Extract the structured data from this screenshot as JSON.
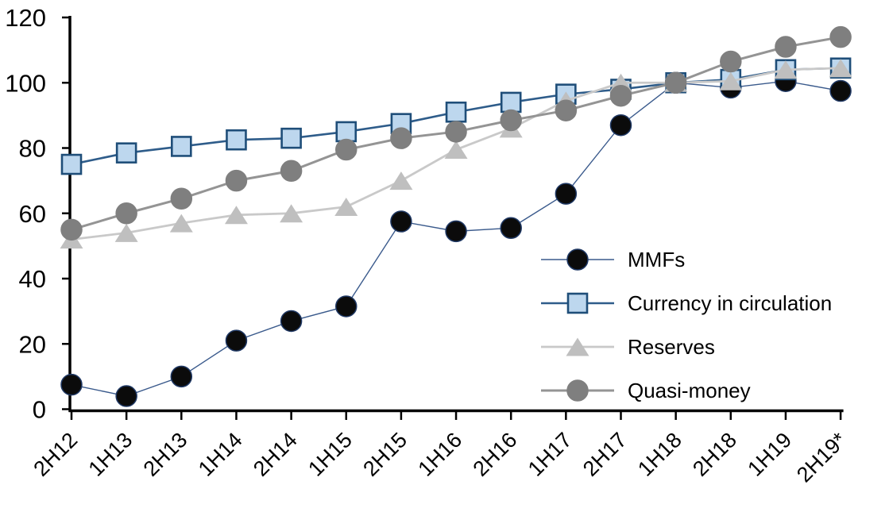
{
  "chart_data": {
    "type": "line",
    "title": "",
    "categories": [
      "2H12",
      "1H13",
      "2H13",
      "1H14",
      "2H14",
      "1H15",
      "2H15",
      "1H16",
      "2H16",
      "1H17",
      "2H17",
      "1H18",
      "2H18",
      "1H19",
      "2H19*"
    ],
    "series": [
      {
        "name": "MMFs",
        "marker": "circle",
        "marker_fill": "#0b0b0b",
        "marker_stroke": "#1f3864",
        "line_color": "#3a5a8c",
        "line_width": 1.4,
        "values": [
          7.5,
          4,
          10,
          21,
          27,
          31.5,
          57.5,
          54.5,
          55.5,
          66,
          87,
          100,
          98.5,
          100.5,
          97.5
        ]
      },
      {
        "name": "Currency in circulation",
        "marker": "square",
        "marker_fill": "#bdd7ee",
        "marker_stroke": "#1f4e79",
        "line_color": "#2e5c8a",
        "line_width": 2.6,
        "values": [
          75,
          78.5,
          80.5,
          82.5,
          83,
          85,
          87.5,
          91,
          94,
          96.5,
          98,
          100,
          101,
          104,
          104.5
        ]
      },
      {
        "name": "Reserves",
        "marker": "triangle",
        "marker_fill": "#bfbfbf",
        "marker_stroke": "#bfbfbf",
        "line_color": "#c9c9c9",
        "line_width": 2.8,
        "values": [
          52,
          54,
          57,
          59.5,
          60,
          62,
          70,
          79.5,
          86,
          94.5,
          100,
          100,
          100.5,
          104,
          104.5
        ]
      },
      {
        "name": "Quasi-money",
        "marker": "circle",
        "marker_fill": "#7f7f7f",
        "marker_stroke": "#7f7f7f",
        "line_color": "#949494",
        "line_width": 3,
        "values": [
          55,
          60,
          64.5,
          70,
          73,
          79.5,
          83,
          85,
          88.5,
          91.5,
          96,
          100,
          106.5,
          111,
          114
        ]
      }
    ],
    "y_axis": {
      "min": 0,
      "max": 120,
      "step": 20,
      "tick_labels": [
        "0",
        "20",
        "40",
        "60",
        "80",
        "100",
        "120"
      ]
    },
    "x_axis": {
      "tick_label_rotation": -45
    },
    "axis_color": "#000000",
    "grid": false,
    "legend_position": "inside-right"
  }
}
